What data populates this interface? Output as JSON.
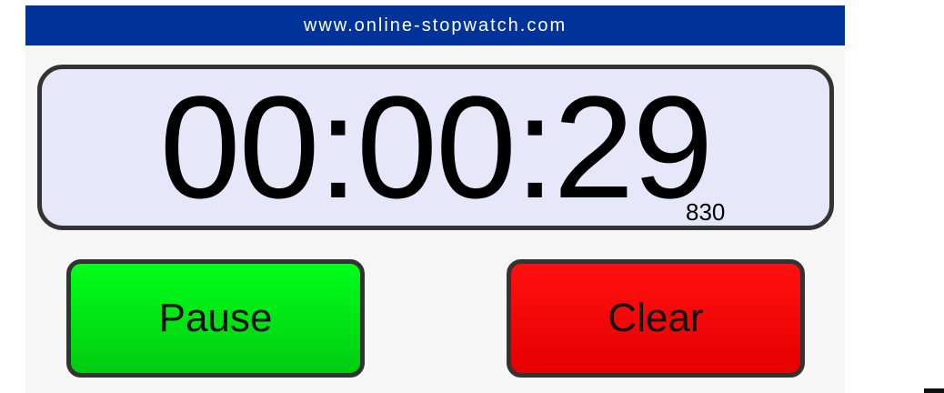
{
  "banner": {
    "site": "www.online-stopwatch.com"
  },
  "stopwatch": {
    "time": "00:00:29",
    "milliseconds": "830"
  },
  "controls": {
    "pause_label": "Pause",
    "clear_label": "Clear"
  },
  "colors": {
    "banner_bg": "#003399",
    "display_bg": "#e6e8fa",
    "pause_bg": "#00ff1a",
    "clear_bg": "#ff1010"
  }
}
